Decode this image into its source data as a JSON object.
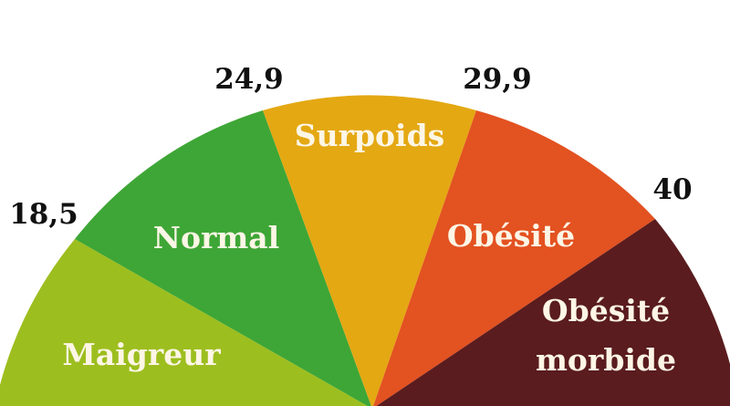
{
  "gauge": {
    "segments": [
      {
        "lines": [
          "Maigreur"
        ],
        "color": "#9dbe1f"
      },
      {
        "lines": [
          "Normal"
        ],
        "color": "#3ea636"
      },
      {
        "lines": [
          "Surpoids"
        ],
        "color": "#e4a813"
      },
      {
        "lines": [
          "Obésité"
        ],
        "color": "#e35221"
      },
      {
        "lines": [
          "Obésité",
          "morbide"
        ],
        "color": "#5a1c1e"
      }
    ],
    "thresholds": [
      "18,5",
      "24,9",
      "29,9",
      "40"
    ]
  }
}
